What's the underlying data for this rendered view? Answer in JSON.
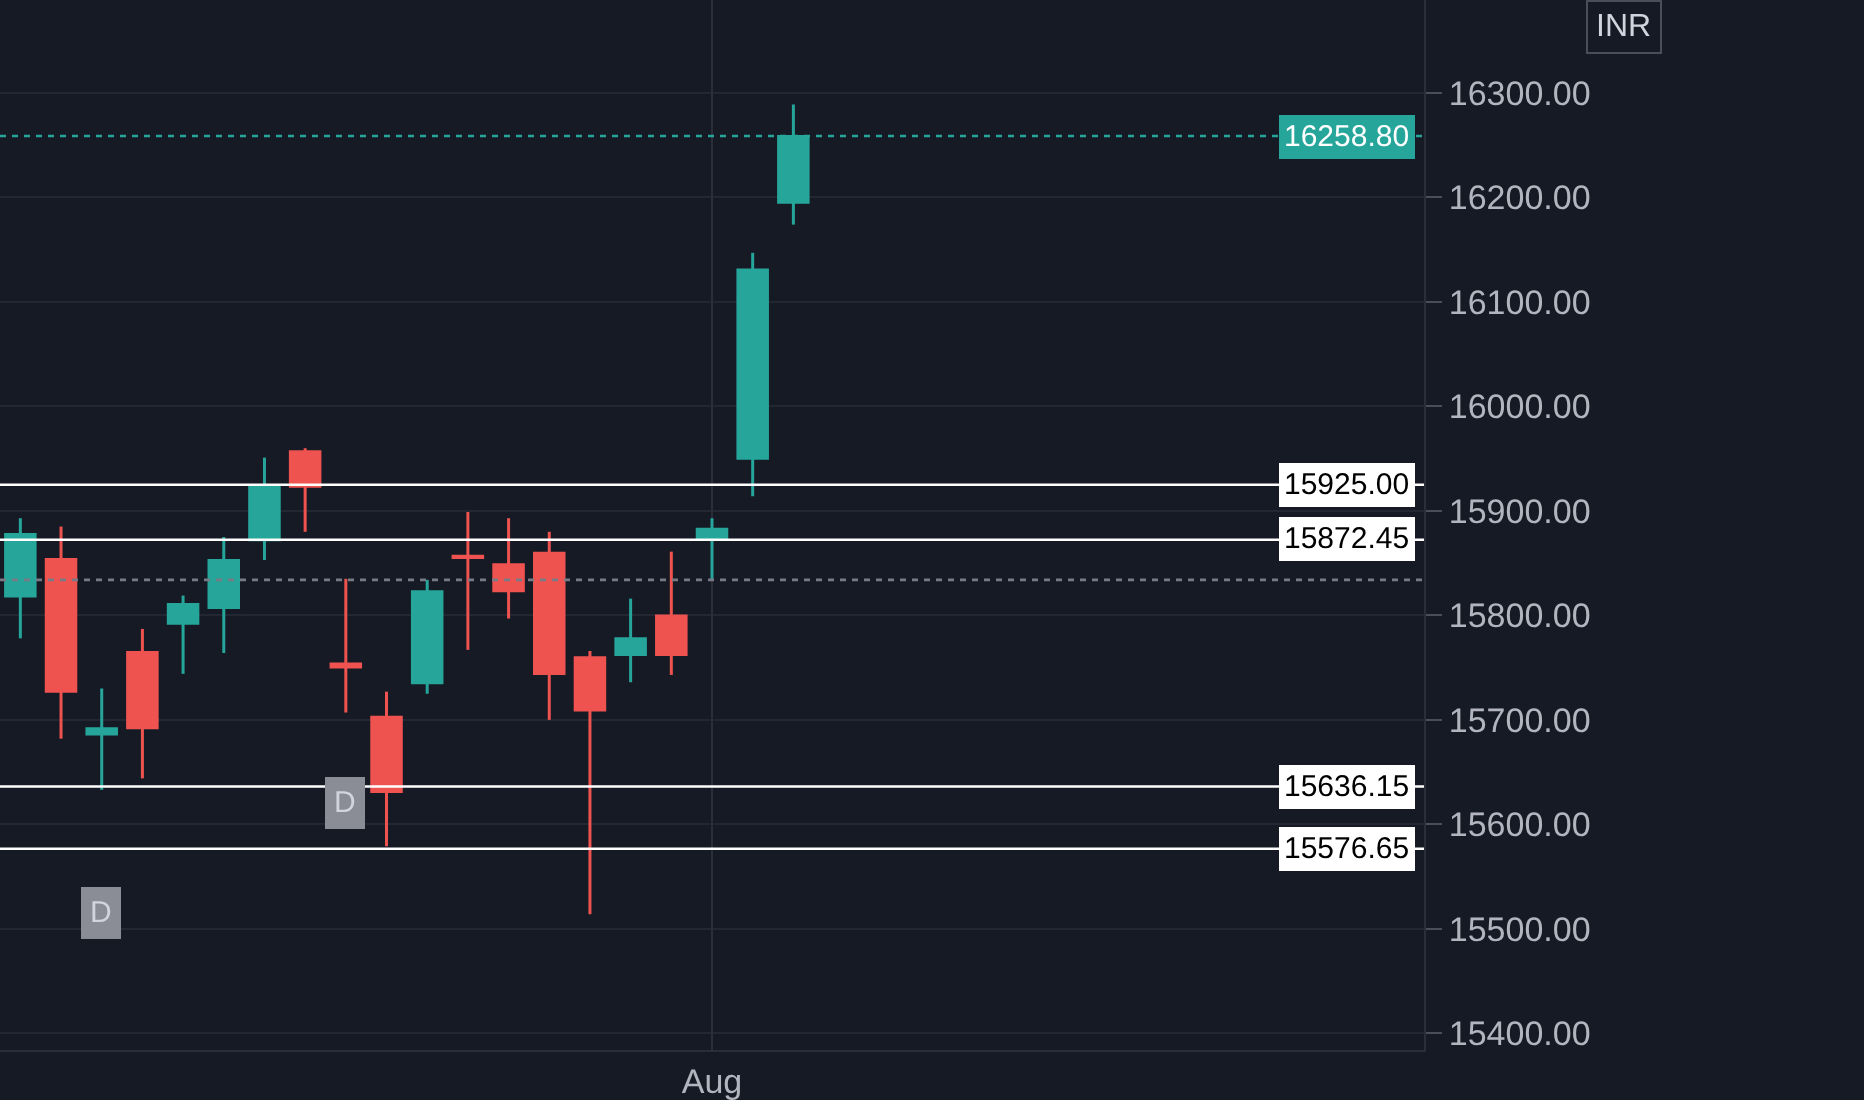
{
  "chart_data": {
    "type": "candlestick",
    "categories": [
      null,
      null,
      null,
      null,
      null,
      null,
      null,
      null,
      null,
      null,
      null,
      null,
      null,
      null,
      null,
      null,
      null,
      "Aug",
      null,
      null,
      null,
      null,
      null,
      null,
      null,
      null,
      null,
      null,
      null,
      null,
      null,
      null,
      null,
      null,
      null
    ],
    "ohlc": [
      [
        15818,
        15893,
        15778,
        15878
      ],
      [
        15854,
        15885,
        15682,
        15727
      ],
      [
        15686,
        15730,
        15633,
        15692
      ],
      [
        15765,
        15787,
        15644,
        15692
      ],
      [
        15792,
        15819,
        15744,
        15811
      ],
      [
        15807,
        15875,
        15764,
        15853
      ],
      [
        15872,
        15951,
        15853,
        15924
      ],
      [
        15957,
        15960,
        15880,
        15923
      ],
      [
        15754,
        15835,
        15707,
        15750
      ],
      [
        15703,
        15727,
        15579,
        15631
      ],
      [
        15735,
        15834,
        15725,
        15823
      ],
      [
        15857,
        15899,
        15767,
        15855
      ],
      [
        15849,
        15893,
        15797,
        15823
      ],
      [
        15860,
        15880,
        15700,
        15744
      ],
      [
        15760,
        15766,
        15514,
        15709
      ],
      [
        15762,
        15816,
        15736,
        15778
      ],
      [
        15800,
        15861,
        15743,
        15762
      ],
      [
        15873,
        15893,
        15834,
        15883
      ],
      [
        15950,
        16147,
        15914,
        16131
      ],
      [
        16195,
        16289,
        16174,
        16258.8
      ],
      null,
      null,
      null,
      null,
      null,
      null,
      null,
      null,
      null,
      null,
      null,
      null,
      null,
      null,
      null
    ],
    "colors": [
      "#26a69a",
      "#ef5350",
      "#26a69a",
      "#ef5350",
      "#26a69a",
      "#26a69a",
      "#26a69a",
      "#ef5350",
      "#ef5350",
      "#ef5350",
      "#26a69a",
      "#ef5350",
      "#ef5350",
      "#ef5350",
      "#ef5350",
      "#26a69a",
      "#ef5350",
      "#26a69a",
      "#26a69a",
      "#26a69a",
      null,
      null,
      null,
      null,
      null,
      null,
      null,
      null,
      null,
      null,
      null,
      null,
      null,
      null,
      null
    ],
    "ylim": [
      15384,
      16389
    ],
    "yticks": [
      {
        "value": 15400,
        "label": "15400.00"
      },
      {
        "value": 15500,
        "label": "15500.00"
      },
      {
        "value": 15600,
        "label": "15600.00"
      },
      {
        "value": 15700,
        "label": "15700.00"
      },
      {
        "value": 15800,
        "label": "15800.00"
      },
      {
        "value": 15900,
        "label": "15900.00"
      },
      {
        "value": 16000,
        "label": "16000.00"
      },
      {
        "value": 16100,
        "label": "16100.00"
      },
      {
        "value": 16200,
        "label": "16200.00"
      },
      {
        "value": 16300,
        "label": "16300.00"
      }
    ],
    "grid": true,
    "ref_lines": [
      {
        "axis": "y",
        "value": 15925,
        "label": "15925.00",
        "color": "#ffffff",
        "line_style": "solid"
      },
      {
        "axis": "y",
        "value": 15872.45,
        "label": "15872.45",
        "color": "#ffffff",
        "line_style": "solid"
      },
      {
        "axis": "y",
        "value": 15636.15,
        "label": "15636.15",
        "color": "#ffffff",
        "line_style": "solid"
      },
      {
        "axis": "y",
        "value": 15576.65,
        "label": "15576.65",
        "color": "#ffffff",
        "line_style": "solid"
      },
      {
        "axis": "y",
        "value": 16258.8,
        "label": "16258.80",
        "color": "#26a69a",
        "line_style": "dotted"
      },
      {
        "axis": "y",
        "value": 15834,
        "color": "#787b86",
        "line_style": "dotted"
      }
    ],
    "annotations": [
      "INR",
      "D",
      "D"
    ]
  }
}
